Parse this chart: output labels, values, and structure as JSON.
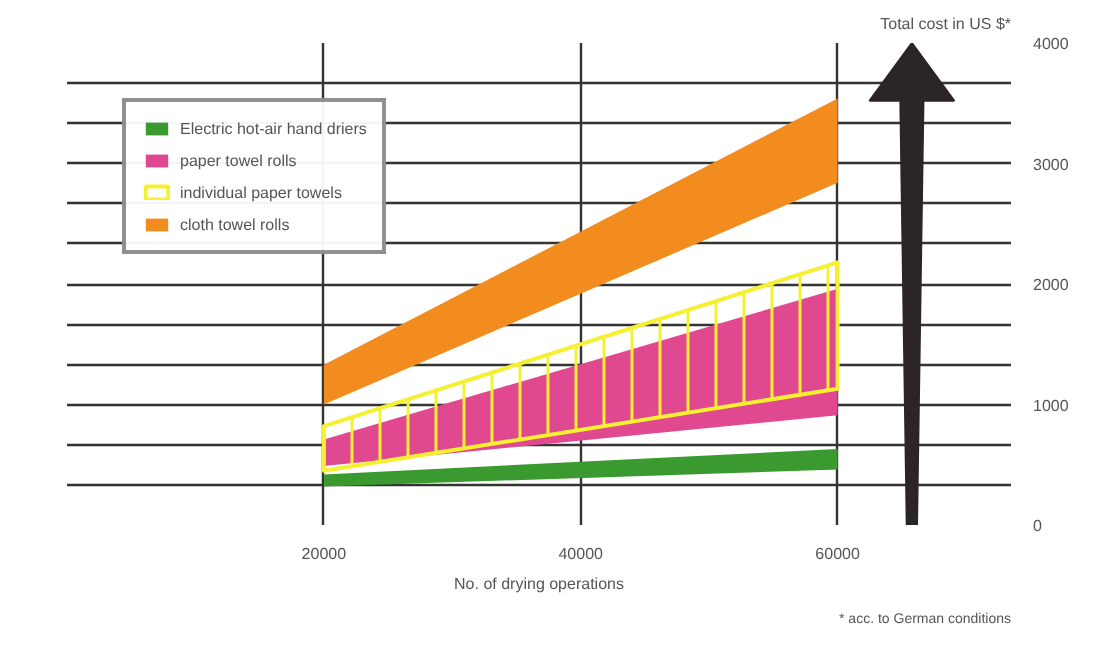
{
  "chart_data": {
    "type": "area",
    "ylabel": "Total cost in US $*",
    "xlabel": "No. of drying operations",
    "annotations": [
      "* acc. to German conditions"
    ],
    "x": [
      20000,
      60000
    ],
    "series": [
      {
        "name": "cloth towel rolls",
        "color": "#f28c1e",
        "values": [
          null,
          null
        ],
        "lower": [
          1000,
          2840
        ],
        "upper": [
          1330,
          3540
        ]
      },
      {
        "name": "paper towel rolls",
        "color": "#e0488f",
        "values": [
          null,
          null
        ],
        "lower": [
          490,
          910
        ],
        "upper": [
          710,
          1960
        ]
      },
      {
        "name": "individual paper towels",
        "color": "#f5f032",
        "values": [
          null,
          null
        ],
        "lower": [
          450,
          1130
        ],
        "upper": [
          820,
          2180
        ]
      },
      {
        "name": "Electric hot-air hand driers",
        "color": "#3a9a30",
        "values": [
          null,
          null
        ],
        "lower": [
          320,
          460
        ],
        "upper": [
          420,
          630
        ]
      }
    ],
    "legend": "top left",
    "grid": true,
    "xlim": [
      0,
      73500
    ],
    "xticks": [
      20000,
      40000,
      60000
    ],
    "ylim": [
      0,
      4000
    ],
    "yticks": [
      0,
      {
        "value": 333.3,
        "label": null
      },
      {
        "value": 666.7,
        "label": null
      },
      1000,
      {
        "value": 1333.3,
        "label": null
      },
      {
        "value": 1666.7,
        "label": null
      },
      2000,
      {
        "value": 2333.3,
        "label": null
      },
      {
        "value": 2666.7,
        "label": null
      },
      3000,
      {
        "value": 3333.3,
        "label": null
      },
      {
        "value": 3666.7,
        "label": null
      },
      4000
    ]
  }
}
